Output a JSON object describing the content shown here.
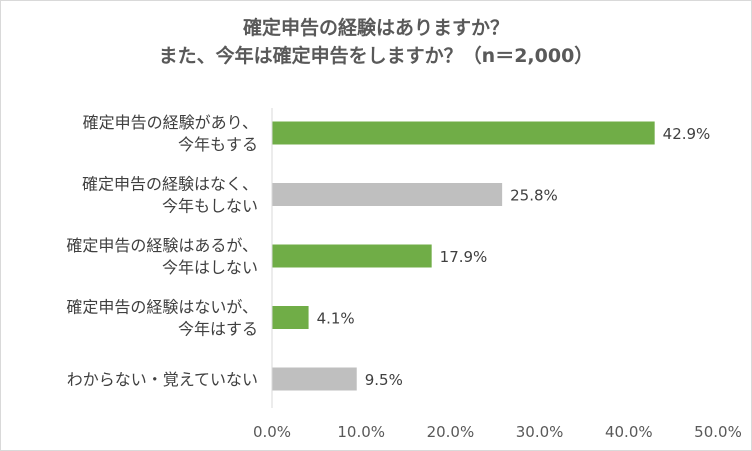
{
  "chart_data": {
    "type": "bar",
    "orientation": "horizontal",
    "title_lines": [
      "確定申告の経験はありますか？",
      "また、今年は確定申告をしますか？（n＝2,000）"
    ],
    "categories": [
      [
        "確定申告の経験があり、",
        "今年もする"
      ],
      [
        "確定申告の経験はなく、",
        "今年もしない"
      ],
      [
        "確定申告の経験はあるが、",
        "今年はしない"
      ],
      [
        "確定申告の経験はないが、",
        "今年はする"
      ],
      [
        "わからない・覚えていない"
      ]
    ],
    "values": [
      42.9,
      25.8,
      17.9,
      4.1,
      9.5
    ],
    "value_labels": [
      "42.9%",
      "25.8%",
      "17.9%",
      "4.1%",
      "9.5%"
    ],
    "bar_colors": [
      "#70ad47",
      "#bfbfbf",
      "#70ad47",
      "#70ad47",
      "#bfbfbf"
    ],
    "xlim": [
      0,
      50
    ],
    "x_ticks": [
      0,
      10,
      20,
      30,
      40,
      50
    ],
    "x_tick_labels": [
      "0.0%",
      "10.0%",
      "20.0%",
      "30.0%",
      "40.0%",
      "50.0%"
    ],
    "grid": false,
    "legend": "none"
  }
}
